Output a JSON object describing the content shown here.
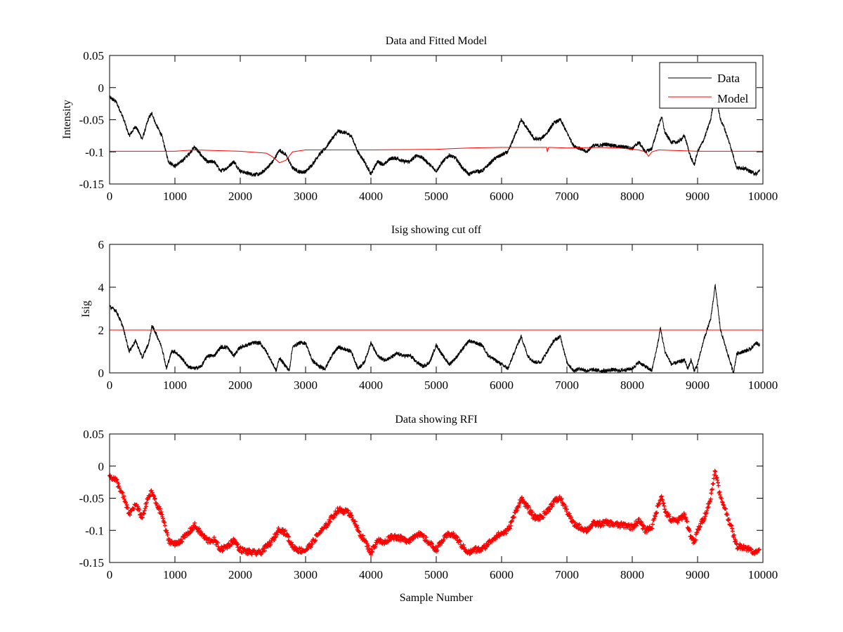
{
  "chart_data": [
    {
      "type": "line",
      "title": "Data and Fitted Model",
      "xlabel": "",
      "ylabel": "Intensity",
      "xlim": [
        0,
        10000
      ],
      "ylim": [
        -0.15,
        0.05
      ],
      "xticks": [
        0,
        1000,
        2000,
        3000,
        4000,
        5000,
        6000,
        7000,
        8000,
        9000,
        10000
      ],
      "xtick_labels": [
        "0",
        "1000",
        "2000",
        "3000",
        "4000",
        "5000",
        "6000",
        "7000",
        "8000",
        "9000",
        "10000"
      ],
      "yticks": [
        -0.15,
        -0.1,
        -0.05,
        0,
        0.05
      ],
      "ytick_labels": [
        "-0.15",
        "-0.1",
        "-0.05",
        "0",
        "0.05"
      ],
      "grid": false,
      "legend": {
        "placement": "top-right",
        "entries": [
          "Data",
          "Model"
        ]
      },
      "series": [
        {
          "name": "Data",
          "color": "#000000",
          "x": [
            0,
            100,
            200,
            300,
            400,
            500,
            600,
            650,
            700,
            800,
            900,
            1000,
            1100,
            1200,
            1300,
            1400,
            1500,
            1600,
            1700,
            1800,
            1900,
            2000,
            2100,
            2200,
            2300,
            2400,
            2500,
            2600,
            2700,
            2800,
            2900,
            3000,
            3100,
            3200,
            3300,
            3400,
            3500,
            3600,
            3700,
            3800,
            3900,
            4000,
            4100,
            4200,
            4300,
            4400,
            4500,
            4600,
            4700,
            4800,
            4900,
            5000,
            5100,
            5200,
            5300,
            5400,
            5500,
            5600,
            5700,
            5800,
            5900,
            6000,
            6100,
            6200,
            6300,
            6400,
            6500,
            6600,
            6700,
            6800,
            6900,
            7000,
            7100,
            7200,
            7300,
            7400,
            7500,
            7600,
            7700,
            7800,
            7900,
            8000,
            8100,
            8200,
            8300,
            8400,
            8450,
            8500,
            8600,
            8700,
            8800,
            8900,
            8950,
            9000,
            9100,
            9200,
            9270,
            9350,
            9400,
            9500,
            9600,
            9700,
            9800,
            9900,
            9950
          ],
          "y": [
            -0.015,
            -0.022,
            -0.045,
            -0.075,
            -0.06,
            -0.08,
            -0.047,
            -0.04,
            -0.055,
            -0.075,
            -0.115,
            -0.122,
            -0.115,
            -0.105,
            -0.092,
            -0.105,
            -0.116,
            -0.115,
            -0.13,
            -0.125,
            -0.115,
            -0.13,
            -0.133,
            -0.135,
            -0.135,
            -0.126,
            -0.115,
            -0.097,
            -0.105,
            -0.125,
            -0.131,
            -0.131,
            -0.12,
            -0.105,
            -0.095,
            -0.08,
            -0.068,
            -0.07,
            -0.075,
            -0.1,
            -0.115,
            -0.135,
            -0.115,
            -0.12,
            -0.11,
            -0.11,
            -0.115,
            -0.115,
            -0.105,
            -0.11,
            -0.12,
            -0.13,
            -0.115,
            -0.105,
            -0.11,
            -0.125,
            -0.135,
            -0.13,
            -0.13,
            -0.12,
            -0.11,
            -0.105,
            -0.1,
            -0.075,
            -0.05,
            -0.065,
            -0.08,
            -0.08,
            -0.07,
            -0.055,
            -0.05,
            -0.07,
            -0.09,
            -0.095,
            -0.1,
            -0.09,
            -0.09,
            -0.088,
            -0.09,
            -0.092,
            -0.092,
            -0.095,
            -0.085,
            -0.1,
            -0.095,
            -0.06,
            -0.045,
            -0.07,
            -0.085,
            -0.085,
            -0.075,
            -0.11,
            -0.12,
            -0.1,
            -0.08,
            -0.05,
            -0.005,
            -0.05,
            -0.06,
            -0.09,
            -0.125,
            -0.125,
            -0.13,
            -0.135,
            -0.128
          ]
        },
        {
          "name": "Model",
          "color": "#ff0000",
          "x": [
            0,
            1000,
            1300,
            2000,
            2400,
            2500,
            2600,
            2700,
            2800,
            3000,
            4000,
            5000,
            5500,
            6000,
            6690,
            6700,
            6720,
            7000,
            7500,
            7800,
            8100,
            8200,
            8250,
            8300,
            8400,
            9000,
            10000
          ],
          "y": [
            -0.099,
            -0.099,
            -0.097,
            -0.099,
            -0.102,
            -0.108,
            -0.117,
            -0.113,
            -0.1,
            -0.097,
            -0.097,
            -0.096,
            -0.094,
            -0.093,
            -0.093,
            -0.1,
            -0.093,
            -0.094,
            -0.093,
            -0.094,
            -0.097,
            -0.1,
            -0.107,
            -0.1,
            -0.097,
            -0.099,
            -0.099
          ]
        }
      ]
    },
    {
      "type": "line",
      "title": "Isig showing cut off",
      "xlabel": "",
      "ylabel": "Isig",
      "xlim": [
        0,
        10000
      ],
      "ylim": [
        0,
        6
      ],
      "xticks": [
        0,
        1000,
        2000,
        3000,
        4000,
        5000,
        6000,
        7000,
        8000,
        9000,
        10000
      ],
      "xtick_labels": [
        "0",
        "1000",
        "2000",
        "3000",
        "4000",
        "5000",
        "6000",
        "7000",
        "8000",
        "9000",
        "10000"
      ],
      "yticks": [
        0,
        2,
        4,
        6
      ],
      "ytick_labels": [
        "0",
        "2",
        "4",
        "6"
      ],
      "grid": false,
      "series": [
        {
          "name": "Isig",
          "color": "#000000",
          "x": [
            0,
            100,
            200,
            300,
            400,
            500,
            600,
            650,
            700,
            800,
            870,
            950,
            1000,
            1100,
            1200,
            1300,
            1400,
            1500,
            1600,
            1700,
            1800,
            1900,
            2000,
            2100,
            2200,
            2300,
            2400,
            2500,
            2550,
            2600,
            2700,
            2750,
            2800,
            2900,
            3000,
            3100,
            3200,
            3300,
            3400,
            3500,
            3600,
            3700,
            3800,
            3900,
            4000,
            4100,
            4200,
            4300,
            4400,
            4500,
            4600,
            4700,
            4800,
            4900,
            5000,
            5100,
            5200,
            5300,
            5400,
            5500,
            5600,
            5700,
            5800,
            5900,
            6000,
            6100,
            6200,
            6300,
            6400,
            6500,
            6600,
            6700,
            6800,
            6900,
            7000,
            7100,
            7200,
            7300,
            7400,
            7500,
            7600,
            7700,
            7800,
            7900,
            8000,
            8100,
            8200,
            8300,
            8400,
            8430,
            8500,
            8600,
            8700,
            8800,
            8850,
            8900,
            8950,
            9000,
            9100,
            9200,
            9270,
            9350,
            9400,
            9500,
            9550,
            9600,
            9700,
            9800,
            9900,
            9950
          ],
          "y": [
            3.1,
            2.9,
            2.2,
            1.0,
            1.5,
            0.7,
            1.4,
            2.2,
            1.9,
            1.2,
            0.2,
            1.0,
            1.0,
            0.7,
            0.3,
            0.2,
            0.3,
            0.8,
            0.8,
            1.2,
            1.2,
            0.8,
            1.2,
            1.3,
            1.4,
            1.4,
            1.0,
            0.4,
            0.1,
            0.7,
            0.3,
            0.1,
            1.2,
            1.4,
            1.4,
            0.6,
            0.3,
            0.2,
            0.8,
            1.2,
            1.1,
            1.0,
            0.2,
            0.5,
            1.4,
            0.8,
            0.6,
            0.7,
            0.9,
            0.8,
            0.8,
            0.5,
            0.3,
            0.5,
            1.3,
            0.8,
            0.4,
            0.7,
            1.1,
            1.5,
            1.4,
            1.3,
            0.8,
            0.6,
            0.4,
            0.2,
            1.0,
            1.7,
            0.8,
            0.5,
            0.5,
            1.0,
            1.5,
            1.7,
            0.5,
            0.1,
            0.2,
            0.1,
            0.15,
            0.1,
            0.1,
            0.15,
            0.1,
            0.15,
            0.2,
            0.5,
            0.3,
            0.1,
            1.5,
            2.1,
            1.0,
            0.4,
            0.5,
            0.6,
            0.2,
            0.6,
            0.1,
            0.4,
            1.6,
            2.5,
            4.1,
            2.0,
            1.5,
            0.5,
            0.0,
            0.9,
            1.0,
            1.1,
            1.4,
            1.3
          ]
        },
        {
          "name": "Cut off",
          "color": "#ff0000",
          "x": [
            0,
            10000
          ],
          "y": [
            2,
            2
          ]
        }
      ]
    },
    {
      "type": "scatter",
      "title": "Data showing RFI",
      "xlabel": "Sample Number",
      "ylabel": "",
      "xlim": [
        0,
        10000
      ],
      "ylim": [
        -0.15,
        0.05
      ],
      "xticks": [
        0,
        1000,
        2000,
        3000,
        4000,
        5000,
        6000,
        7000,
        8000,
        9000,
        10000
      ],
      "xtick_labels": [
        "0",
        "1000",
        "2000",
        "3000",
        "4000",
        "5000",
        "6000",
        "7000",
        "8000",
        "9000",
        "10000"
      ],
      "yticks": [
        -0.15,
        -0.1,
        -0.05,
        0,
        0.05
      ],
      "ytick_labels": [
        "-0.15",
        "-0.1",
        "-0.05",
        "0",
        "0.05"
      ],
      "grid": false,
      "series": [
        {
          "name": "RFI data",
          "color": "#ff0000",
          "marker": "+",
          "same_as": "Data"
        }
      ]
    }
  ]
}
